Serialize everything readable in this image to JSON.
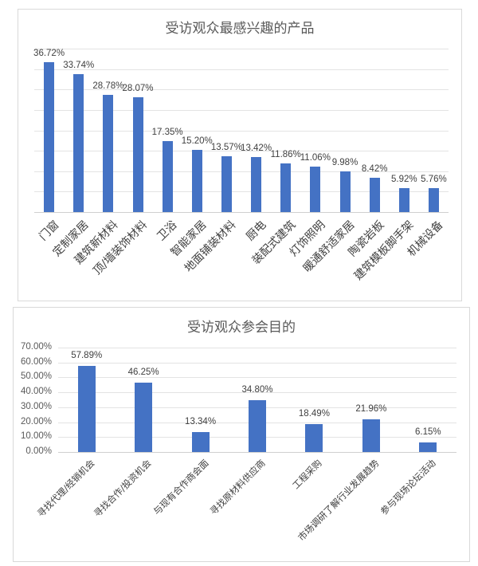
{
  "chart_data": [
    {
      "type": "bar",
      "title": "受访观众最感兴趣的产品",
      "xlabel": "",
      "ylabel": "",
      "ylim": [
        0,
        40
      ],
      "grid": true,
      "y_axis_labels_visible": false,
      "legend": null,
      "bar_color": "#4472c4",
      "categories": [
        "门窗",
        "定制家居",
        "建筑新材料",
        "顶/墙装饰材料",
        "卫浴",
        "智能家居",
        "地面铺装材料",
        "厨电",
        "装配式建筑",
        "灯饰照明",
        "暖通舒适家居",
        "陶瓷岩板",
        "建筑模板脚手架",
        "机械设备"
      ],
      "values": [
        36.72,
        33.74,
        28.78,
        28.07,
        17.35,
        15.2,
        13.57,
        13.42,
        11.86,
        11.06,
        9.98,
        8.42,
        5.92,
        5.76
      ],
      "value_labels": [
        "36.72%",
        "33.74%",
        "28.78%",
        "28.07%",
        "17.35%",
        "15.20%",
        "13.57%",
        "13.42%",
        "11.86%",
        "11.06%",
        "9.98%",
        "8.42%",
        "5.92%",
        "5.76%"
      ]
    },
    {
      "type": "bar",
      "title": "受访观众参会目的",
      "xlabel": "",
      "ylabel": "",
      "ylim": [
        0,
        70
      ],
      "grid": true,
      "legend": null,
      "bar_color": "#4472c4",
      "y_ticks": [
        "0.00%",
        "10.00%",
        "20.00%",
        "30.00%",
        "40.00%",
        "50.00%",
        "60.00%",
        "70.00%"
      ],
      "categories": [
        "寻找代理/经销机会",
        "寻找合作/投资机会",
        "与现有合作商会面",
        "寻找原材料供应商",
        "工程采购",
        "市场调研了解行业发展趋势",
        "参与现场论坛活动"
      ],
      "values": [
        57.89,
        46.25,
        13.34,
        34.8,
        18.49,
        21.96,
        6.15
      ],
      "value_labels": [
        "57.89%",
        "46.25%",
        "13.34%",
        "34.80%",
        "18.49%",
        "21.96%",
        "6.15%"
      ]
    }
  ]
}
